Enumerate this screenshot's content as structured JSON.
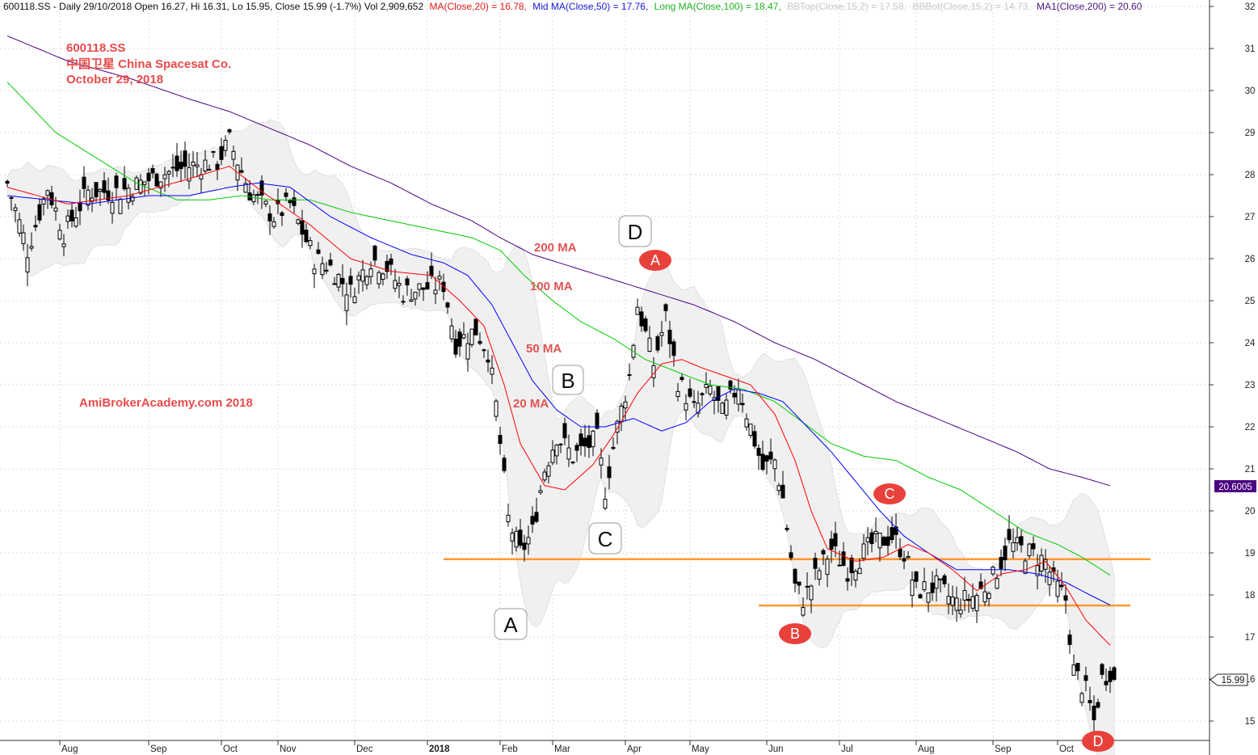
{
  "header": {
    "ticker_info": "600118.SS - Daily 29/10/2018 Open 16.27, Hi 16.31, Lo 15.95, Close 15.99 (-1.7%) Vol 2,909,652",
    "ma20": "MA(Close,20) = 16.78,",
    "ma50": "Mid MA(Close,50) = 17.76,",
    "ma100": "Long MA(Close,100) = 18.47,",
    "bbtop": "BBTop(Close,15,2) = 17.58,",
    "bbbot": "BBBot(Close,15,2) = 14.73,",
    "ma200": "MA1(Close,200) = 20.60"
  },
  "annotation": {
    "line1": "600118.SS",
    "line2": "中国卫星  China Spacesat Co.",
    "line3": "October 29, 2018",
    "site": "AmiBrokerAcademy.com  2018"
  },
  "ma_labels": {
    "ma200": "200 MA",
    "ma100": "100 MA",
    "ma50": "50 MA",
    "ma20": "20 MA"
  },
  "pattern_boxes": [
    "A",
    "B",
    "C",
    "D"
  ],
  "pattern_pills": [
    "A",
    "B",
    "C",
    "D"
  ],
  "price_tags": {
    "ma200": "20.6005",
    "close": "15.99"
  },
  "colors": {
    "ma20": "#ff0000",
    "ma50": "#0000ff",
    "ma100": "#00cc00",
    "ma200": "#4b0082",
    "bband": "#e0e0e0",
    "support": "#ff9933",
    "pill": "#e8413c",
    "annotation": "#e84c4c"
  },
  "chart_data": {
    "type": "candlestick",
    "title": "600118.SS",
    "ylim": [
      14.5,
      32.2
    ],
    "y_ticks": [
      "15",
      "16",
      "17",
      "18",
      "19",
      "20",
      "21",
      "22",
      "23",
      "24",
      "25",
      "26",
      "27",
      "28",
      "29",
      "30",
      "31",
      "32"
    ],
    "x_labels": [
      {
        "label": "Aug",
        "bar": 13
      },
      {
        "label": "Sep",
        "bar": 35
      },
      {
        "label": "Oct",
        "bar": 53
      },
      {
        "label": "Nov",
        "bar": 67
      },
      {
        "label": "Dec",
        "bar": 86
      },
      {
        "label": "2018",
        "bar": 104
      },
      {
        "label": "Feb",
        "bar": 122
      },
      {
        "label": "Mar",
        "bar": 135
      },
      {
        "label": "Apr",
        "bar": 153
      },
      {
        "label": "May",
        "bar": 169
      },
      {
        "label": "Jun",
        "bar": 188
      },
      {
        "label": "Jul",
        "bar": 206
      },
      {
        "label": "Aug",
        "bar": 225
      },
      {
        "label": "Sep",
        "bar": 244
      },
      {
        "label": "Oct",
        "bar": 260
      }
    ],
    "price_keypoints": [
      [
        0,
        27.8
      ],
      [
        5,
        26.2
      ],
      [
        10,
        27.7
      ],
      [
        14,
        26.6
      ],
      [
        20,
        27.6
      ],
      [
        28,
        27.6
      ],
      [
        38,
        28.0
      ],
      [
        45,
        28.2
      ],
      [
        52,
        28.3
      ],
      [
        55,
        28.8
      ],
      [
        60,
        27.6
      ],
      [
        66,
        27.0
      ],
      [
        70,
        27.3
      ],
      [
        76,
        26.0
      ],
      [
        80,
        25.8
      ],
      [
        85,
        25.2
      ],
      [
        90,
        26.0
      ],
      [
        94,
        25.8
      ],
      [
        98,
        25.2
      ],
      [
        103,
        25.3
      ],
      [
        108,
        25.4
      ],
      [
        111,
        24.0
      ],
      [
        116,
        24.3
      ],
      [
        119,
        23.8
      ],
      [
        121,
        22.5
      ],
      [
        124,
        19.8
      ],
      [
        127,
        19.0
      ],
      [
        130,
        19.5
      ],
      [
        133,
        21.0
      ],
      [
        136,
        21.8
      ],
      [
        140,
        21.3
      ],
      [
        146,
        21.7
      ],
      [
        148,
        20.5
      ],
      [
        151,
        22.0
      ],
      [
        154,
        23.2
      ],
      [
        156,
        24.9
      ],
      [
        160,
        23.5
      ],
      [
        163,
        24.6
      ],
      [
        166,
        23.1
      ],
      [
        170,
        22.4
      ],
      [
        174,
        22.9
      ],
      [
        177,
        22.3
      ],
      [
        181,
        23.0
      ],
      [
        184,
        22.0
      ],
      [
        187,
        21.0
      ],
      [
        190,
        21.2
      ],
      [
        192,
        20.3
      ],
      [
        195,
        18.2
      ],
      [
        197,
        17.9
      ],
      [
        201,
        18.6
      ],
      [
        204,
        19.1
      ],
      [
        208,
        18.6
      ],
      [
        214,
        19.2
      ],
      [
        219,
        19.4
      ],
      [
        222,
        19.0
      ],
      [
        225,
        18.1
      ],
      [
        230,
        18.2
      ],
      [
        235,
        17.8
      ],
      [
        240,
        18.0
      ],
      [
        244,
        18.4
      ],
      [
        248,
        19.2
      ],
      [
        253,
        19.0
      ],
      [
        257,
        18.8
      ],
      [
        259,
        18.3
      ],
      [
        262,
        17.9
      ],
      [
        264,
        16.2
      ],
      [
        267,
        15.7
      ],
      [
        269,
        15.0
      ],
      [
        271,
        16.0
      ],
      [
        273,
        16.2
      ],
      [
        274,
        15.99
      ]
    ],
    "ma20_keypoints": [
      [
        0,
        27.7
      ],
      [
        15,
        27.3
      ],
      [
        30,
        27.5
      ],
      [
        45,
        27.9
      ],
      [
        55,
        28.2
      ],
      [
        63,
        27.6
      ],
      [
        75,
        26.8
      ],
      [
        85,
        26.0
      ],
      [
        95,
        25.7
      ],
      [
        105,
        25.6
      ],
      [
        112,
        25.0
      ],
      [
        118,
        24.4
      ],
      [
        123,
        23.0
      ],
      [
        127,
        21.6
      ],
      [
        133,
        20.6
      ],
      [
        138,
        20.5
      ],
      [
        145,
        21.1
      ],
      [
        150,
        21.8
      ],
      [
        156,
        22.8
      ],
      [
        162,
        23.5
      ],
      [
        167,
        23.6
      ],
      [
        172,
        23.4
      ],
      [
        178,
        23.2
      ],
      [
        184,
        23.0
      ],
      [
        190,
        22.3
      ],
      [
        195,
        21.2
      ],
      [
        199,
        20.0
      ],
      [
        203,
        19.1
      ],
      [
        210,
        18.8
      ],
      [
        217,
        18.9
      ],
      [
        223,
        19.2
      ],
      [
        228,
        19.0
      ],
      [
        234,
        18.6
      ],
      [
        240,
        18.1
      ],
      [
        246,
        18.5
      ],
      [
        252,
        18.6
      ],
      [
        257,
        18.8
      ],
      [
        262,
        18.2
      ],
      [
        267,
        17.4
      ],
      [
        273,
        16.8
      ]
    ],
    "ma50_keypoints": [
      [
        0,
        27.5
      ],
      [
        20,
        27.3
      ],
      [
        35,
        27.5
      ],
      [
        45,
        27.5
      ],
      [
        55,
        27.7
      ],
      [
        62,
        27.8
      ],
      [
        70,
        27.7
      ],
      [
        80,
        27.0
      ],
      [
        90,
        26.5
      ],
      [
        100,
        26.1
      ],
      [
        108,
        25.9
      ],
      [
        114,
        25.6
      ],
      [
        120,
        24.9
      ],
      [
        125,
        24.0
      ],
      [
        130,
        23.1
      ],
      [
        136,
        22.4
      ],
      [
        142,
        22.0
      ],
      [
        148,
        22.0
      ],
      [
        155,
        22.2
      ],
      [
        162,
        21.9
      ],
      [
        168,
        22.1
      ],
      [
        174,
        22.6
      ],
      [
        180,
        22.9
      ],
      [
        186,
        22.8
      ],
      [
        192,
        22.6
      ],
      [
        198,
        22.0
      ],
      [
        204,
        21.4
      ],
      [
        210,
        20.7
      ],
      [
        216,
        20.0
      ],
      [
        222,
        19.4
      ],
      [
        228,
        19.0
      ],
      [
        235,
        18.6
      ],
      [
        240,
        18.6
      ],
      [
        248,
        18.6
      ],
      [
        255,
        18.5
      ],
      [
        262,
        18.3
      ],
      [
        268,
        18.0
      ],
      [
        273,
        17.76
      ]
    ],
    "ma100_keypoints": [
      [
        0,
        30.2
      ],
      [
        12,
        29.0
      ],
      [
        22,
        28.4
      ],
      [
        32,
        27.8
      ],
      [
        42,
        27.4
      ],
      [
        50,
        27.4
      ],
      [
        58,
        27.5
      ],
      [
        65,
        27.4
      ],
      [
        75,
        27.4
      ],
      [
        85,
        27.1
      ],
      [
        95,
        26.9
      ],
      [
        105,
        26.7
      ],
      [
        115,
        26.5
      ],
      [
        122,
        26.2
      ],
      [
        128,
        25.6
      ],
      [
        135,
        25.0
      ],
      [
        142,
        24.5
      ],
      [
        150,
        24.1
      ],
      [
        158,
        23.6
      ],
      [
        166,
        23.3
      ],
      [
        174,
        23.0
      ],
      [
        182,
        22.9
      ],
      [
        190,
        22.6
      ],
      [
        197,
        22.1
      ],
      [
        204,
        21.6
      ],
      [
        212,
        21.3
      ],
      [
        220,
        21.2
      ],
      [
        228,
        20.8
      ],
      [
        236,
        20.5
      ],
      [
        244,
        20.0
      ],
      [
        252,
        19.5
      ],
      [
        260,
        19.2
      ],
      [
        266,
        18.9
      ],
      [
        273,
        18.47
      ]
    ],
    "ma200_keypoints": [
      [
        0,
        31.3
      ],
      [
        15,
        30.7
      ],
      [
        30,
        30.3
      ],
      [
        45,
        29.8
      ],
      [
        55,
        29.5
      ],
      [
        65,
        29.1
      ],
      [
        75,
        28.7
      ],
      [
        85,
        28.2
      ],
      [
        95,
        27.8
      ],
      [
        105,
        27.3
      ],
      [
        115,
        26.9
      ],
      [
        122,
        26.5
      ],
      [
        130,
        26.1
      ],
      [
        140,
        25.8
      ],
      [
        150,
        25.5
      ],
      [
        160,
        25.2
      ],
      [
        170,
        24.9
      ],
      [
        180,
        24.5
      ],
      [
        190,
        24.0
      ],
      [
        200,
        23.6
      ],
      [
        210,
        23.1
      ],
      [
        220,
        22.6
      ],
      [
        230,
        22.2
      ],
      [
        240,
        21.8
      ],
      [
        250,
        21.4
      ],
      [
        258,
        21.0
      ],
      [
        266,
        20.8
      ],
      [
        273,
        20.6
      ]
    ],
    "support_lines": [
      {
        "y": 18.85,
        "from_bar": 108,
        "to_bar": 283
      },
      {
        "y": 17.75,
        "from_bar": 186,
        "to_bar": 278
      }
    ]
  }
}
